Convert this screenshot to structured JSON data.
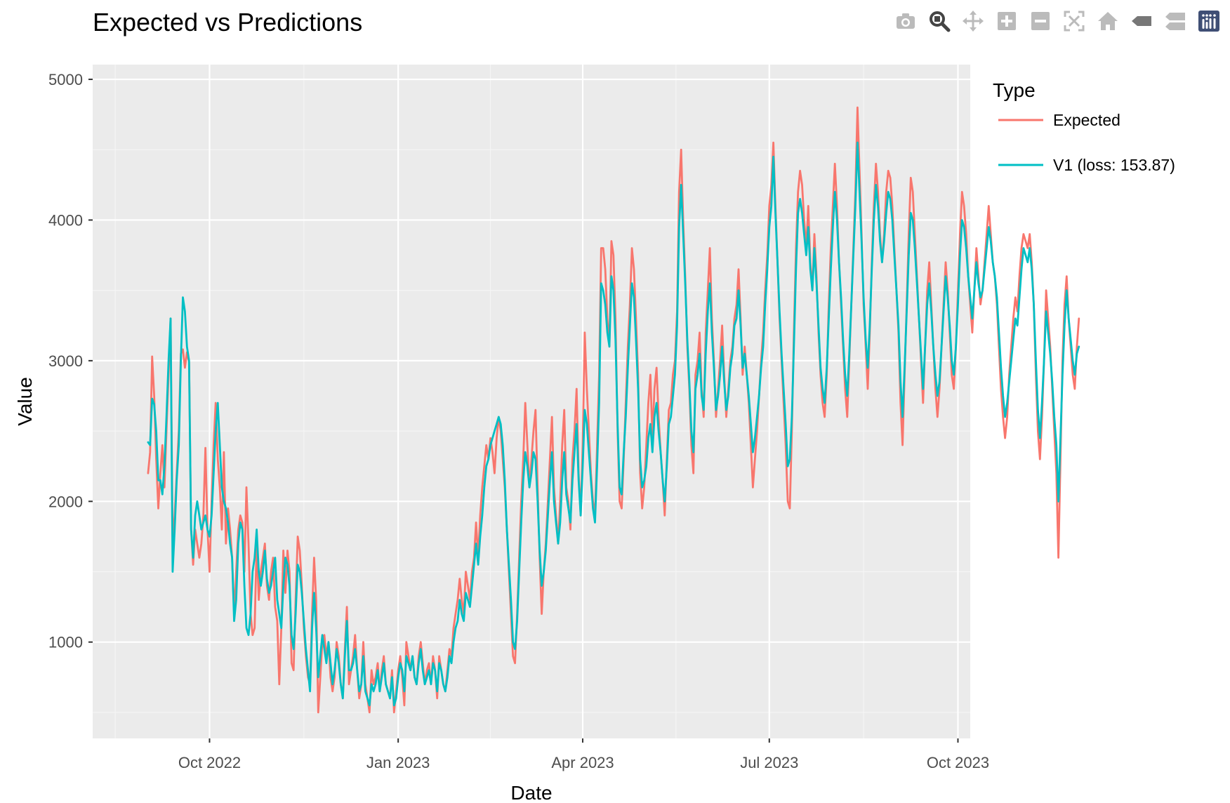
{
  "chart_data": {
    "type": "line",
    "title": "Expected vs Predictions",
    "xlabel": "Date",
    "ylabel": "Value",
    "x_ticks": [
      "Oct 2022",
      "Jan 2023",
      "Apr 2023",
      "Jul 2023",
      "Oct 2023"
    ],
    "y_ticks": [
      "1000",
      "2000",
      "3000",
      "4000",
      "5000"
    ],
    "xlim": [
      "2022-08-05",
      "2023-10-07"
    ],
    "ylim": [
      315,
      5105
    ],
    "grid": true,
    "legend": {
      "title": "Type",
      "placement": "right"
    },
    "series": [
      {
        "name": "Expected",
        "color": "#F8766D",
        "start_date": "2022-09-01",
        "values": [
          2200,
          2350,
          3030,
          2750,
          2300,
          1950,
          2200,
          2400,
          2100,
          2500,
          2900,
          3300,
          1700,
          1900,
          2200,
          2500,
          3050,
          3080,
          2950,
          3060,
          2990,
          1800,
          1550,
          1800,
          1700,
          1600,
          1700,
          1900,
          2380,
          1800,
          1500,
          2000,
          2400,
          2700,
          2300,
          2100,
          1800,
          2350,
          1700,
          1950,
          1800,
          1600,
          1200,
          1500,
          1800,
          1900,
          1850,
          1500,
          2100,
          1700,
          1200,
          1050,
          1100,
          1700,
          1300,
          1500,
          1600,
          1700,
          1400,
          1300,
          1500,
          1600,
          1250,
          1150,
          700,
          1100,
          1650,
          1350,
          1650,
          1500,
          850,
          800,
          1300,
          1750,
          1650,
          1400,
          1100,
          900,
          750,
          700,
          1200,
          1600,
          1300,
          500,
          750,
          1000,
          1050,
          900,
          1000,
          750,
          650,
          750,
          1000,
          900,
          700,
          600,
          950,
          1250,
          700,
          800,
          900,
          1050,
          800,
          600,
          700,
          1000,
          700,
          600,
          500,
          800,
          700,
          750,
          850,
          650,
          800,
          900,
          700,
          650,
          600,
          800,
          500,
          650,
          800,
          900,
          750,
          550,
          1000,
          900,
          800,
          900,
          750,
          700,
          900,
          1000,
          850,
          700,
          800,
          850,
          700,
          900,
          800,
          600,
          900,
          800,
          700,
          650,
          800,
          950,
          900,
          1100,
          1200,
          1300,
          1450,
          1300,
          1200,
          1500,
          1400,
          1300,
          1500,
          1600,
          1850,
          1600,
          1900,
          2100,
          2250,
          2400,
          2300,
          2450,
          2350,
          2200,
          2450,
          2600,
          2500,
          2300,
          2100,
          1800,
          1500,
          1200,
          900,
          850,
          1200,
          1600,
          2000,
          2300,
          2700,
          2400,
          2100,
          2300,
          2500,
          2650,
          2100,
          1600,
          1200,
          1500,
          1700,
          2000,
          2300,
          2600,
          2100,
          1900,
          1700,
          2000,
          2400,
          2650,
          2100,
          2000,
          1800,
          2300,
          2500,
          2800,
          2200,
          1900,
          2400,
          3200,
          2800,
          2500,
          2200,
          2000,
          1900,
          2400,
          2900,
          3800,
          3800,
          3650,
          3300,
          3100,
          3850,
          3750,
          3300,
          2500,
          2000,
          1950,
          2300,
          2700,
          3100,
          3400,
          3800,
          3650,
          3300,
          2900,
          2200,
          1950,
          2100,
          2400,
          2700,
          2900,
          2450,
          2800,
          2950,
          2600,
          2350,
          2150,
          1900,
          2300,
          2650,
          2700,
          2900,
          3000,
          3350,
          4200,
          4500,
          4000,
          3600,
          3100,
          2800,
          2400,
          2200,
          2900,
          3000,
          3200,
          2800,
          2600,
          3200,
          3500,
          3800,
          3300,
          3000,
          2600,
          2800,
          3000,
          3250,
          2900,
          2600,
          2800,
          3000,
          3100,
          3300,
          3400,
          3650,
          3300,
          2900,
          3100,
          2900,
          2700,
          2400,
          2100,
          2300,
          2500,
          2750,
          3000,
          3200,
          3500,
          3750,
          4100,
          4250,
          4550,
          4100,
          3700,
          3300,
          3000,
          2700,
          2400,
          2000,
          1950,
          2500,
          3200,
          3800,
          4200,
          4350,
          4250,
          4000,
          3800,
          4100,
          3700,
          3500,
          3900,
          3600,
          3200,
          2900,
          2700,
          2600,
          2900,
          3400,
          3800,
          4100,
          4400,
          4100,
          3700,
          3400,
          3100,
          2800,
          2600,
          3000,
          3400,
          3800,
          4200,
          4800,
          4350,
          3900,
          3400,
          3100,
          2800,
          3200,
          3700,
          4100,
          4400,
          4200,
          3900,
          3700,
          3900,
          4200,
          4350,
          4300,
          4100,
          3800,
          3500,
          3200,
          2700,
          2400,
          2900,
          3400,
          3900,
          4300,
          4200,
          3900,
          3600,
          3300,
          3000,
          2700,
          3100,
          3500,
          3700,
          3400,
          3100,
          2800,
          2600,
          2800,
          3100,
          3400,
          3700,
          3500,
          3200,
          2900,
          2800,
          3100,
          3500,
          3900,
          4200,
          4100,
          3900,
          3600,
          3400,
          3200,
          3500,
          3800,
          3600,
          3400,
          3500,
          3700,
          3900,
          4100,
          3900,
          3700,
          3600,
          3400,
          3100,
          2800,
          2600,
          2450,
          2600,
          2900,
          3100,
          3300,
          3450,
          3350,
          3600,
          3800,
          3900,
          3850,
          3800,
          3900,
          3700,
          3400,
          2900,
          2500,
          2300,
          2600,
          3000,
          3500,
          3300,
          3100,
          2800,
          2500,
          2200,
          1600,
          2300,
          3000,
          3400,
          3600,
          3300,
          3100,
          2900,
          2800,
          3100,
          3300
        ]
      },
      {
        "name": "V1 (loss: 153.87)",
        "color": "#00BFC4",
        "start_date": "2022-09-01",
        "values": [
          2420,
          2400,
          2730,
          2690,
          2500,
          2150,
          2150,
          2050,
          2250,
          2600,
          3000,
          3300,
          1500,
          1800,
          2150,
          2400,
          3000,
          3450,
          3350,
          3100,
          3000,
          1800,
          1600,
          1900,
          2000,
          1900,
          1800,
          1850,
          1900,
          1800,
          1750,
          1900,
          2200,
          2500,
          2700,
          2400,
          2100,
          2000,
          1950,
          1850,
          1700,
          1600,
          1150,
          1300,
          1700,
          1850,
          1800,
          1400,
          1100,
          1050,
          1200,
          1500,
          1600,
          1800,
          1500,
          1400,
          1500,
          1650,
          1450,
          1350,
          1400,
          1500,
          1600,
          1300,
          1200,
          1100,
          1400,
          1600,
          1550,
          1400,
          1050,
          950,
          1200,
          1550,
          1500,
          1350,
          1150,
          950,
          800,
          650,
          1100,
          1350,
          1100,
          750,
          900,
          1050,
          950,
          850,
          1000,
          850,
          700,
          800,
          950,
          850,
          700,
          600,
          900,
          1150,
          800,
          800,
          850,
          950,
          800,
          650,
          700,
          900,
          650,
          600,
          550,
          700,
          650,
          700,
          800,
          650,
          750,
          850,
          700,
          650,
          600,
          750,
          550,
          600,
          750,
          850,
          800,
          650,
          900,
          850,
          800,
          900,
          750,
          700,
          850,
          950,
          800,
          700,
          750,
          800,
          700,
          850,
          800,
          650,
          850,
          800,
          700,
          650,
          750,
          900,
          850,
          1000,
          1100,
          1150,
          1300,
          1200,
          1150,
          1350,
          1300,
          1250,
          1400,
          1550,
          1700,
          1550,
          1750,
          1900,
          2100,
          2250,
          2300,
          2400,
          2450,
          2500,
          2550,
          2600,
          2550,
          2400,
          2150,
          1800,
          1550,
          1300,
          1000,
          950,
          1150,
          1500,
          1850,
          2150,
          2350,
          2250,
          2100,
          2200,
          2350,
          2300,
          2000,
          1650,
          1400,
          1500,
          1650,
          1900,
          2150,
          2350,
          2000,
          1850,
          1700,
          1850,
          2150,
          2350,
          2050,
          1950,
          1850,
          2150,
          2350,
          2550,
          2150,
          1900,
          2250,
          2650,
          2550,
          2350,
          2150,
          1950,
          1850,
          2250,
          2700,
          3550,
          3500,
          3400,
          3200,
          3100,
          3600,
          3500,
          3150,
          2550,
          2100,
          2050,
          2350,
          2600,
          2950,
          3250,
          3550,
          3450,
          3150,
          2800,
          2300,
          2100,
          2150,
          2250,
          2450,
          2550,
          2350,
          2600,
          2700,
          2500,
          2350,
          2150,
          2000,
          2250,
          2550,
          2600,
          2750,
          2900,
          3250,
          3950,
          4250,
          3900,
          3550,
          3150,
          2850,
          2500,
          2350,
          2800,
          2900,
          3050,
          2750,
          2650,
          3050,
          3350,
          3550,
          3200,
          2950,
          2650,
          2750,
          2900,
          3100,
          2850,
          2650,
          2750,
          2950,
          3050,
          3250,
          3300,
          3500,
          3250,
          2950,
          3050,
          2900,
          2750,
          2550,
          2350,
          2450,
          2600,
          2750,
          2950,
          3100,
          3400,
          3650,
          3950,
          4100,
          4450,
          4050,
          3700,
          3350,
          3050,
          2800,
          2550,
          2250,
          2300,
          2600,
          3100,
          3650,
          4050,
          4150,
          4050,
          3900,
          3750,
          3950,
          3650,
          3500,
          3800,
          3550,
          3250,
          2950,
          2800,
          2700,
          2950,
          3300,
          3650,
          3950,
          4200,
          4000,
          3700,
          3450,
          3150,
          2900,
          2750,
          3050,
          3400,
          3750,
          4100,
          4550,
          4200,
          3850,
          3450,
          3150,
          2950,
          3250,
          3650,
          4000,
          4250,
          4100,
          3850,
          3700,
          3850,
          4050,
          4200,
          4150,
          4000,
          3750,
          3500,
          3250,
          2850,
          2600,
          2950,
          3350,
          3750,
          4050,
          4000,
          3800,
          3550,
          3300,
          3050,
          2800,
          3100,
          3400,
          3550,
          3350,
          3100,
          2900,
          2750,
          2850,
          3100,
          3350,
          3600,
          3450,
          3250,
          3000,
          2900,
          3100,
          3400,
          3750,
          4000,
          3950,
          3800,
          3600,
          3450,
          3300,
          3500,
          3700,
          3550,
          3450,
          3500,
          3650,
          3800,
          3950,
          3850,
          3700,
          3600,
          3450,
          3200,
          2950,
          2750,
          2600,
          2700,
          2850,
          3000,
          3150,
          3300,
          3250,
          3450,
          3650,
          3800,
          3750,
          3700,
          3800,
          3650,
          3400,
          3000,
          2650,
          2450,
          2700,
          3000,
          3350,
          3200,
          3050,
          2850,
          2600,
          2400,
          2000,
          2450,
          2900,
          3250,
          3500,
          3300,
          3150,
          3000,
          2900,
          3050,
          3100
        ]
      }
    ]
  },
  "modebar": {
    "buttons": [
      {
        "name": "camera-icon"
      },
      {
        "name": "zoom-icon"
      },
      {
        "name": "pan-icon"
      },
      {
        "name": "zoom-in-icon"
      },
      {
        "name": "zoom-out-icon"
      },
      {
        "name": "autoscale-icon"
      },
      {
        "name": "home-icon"
      },
      {
        "name": "spike-lines-icon"
      },
      {
        "name": "compare-hover-icon"
      },
      {
        "name": "plotly-logo-icon"
      }
    ],
    "color": "#bbbbbb",
    "active_color": "#444444"
  }
}
